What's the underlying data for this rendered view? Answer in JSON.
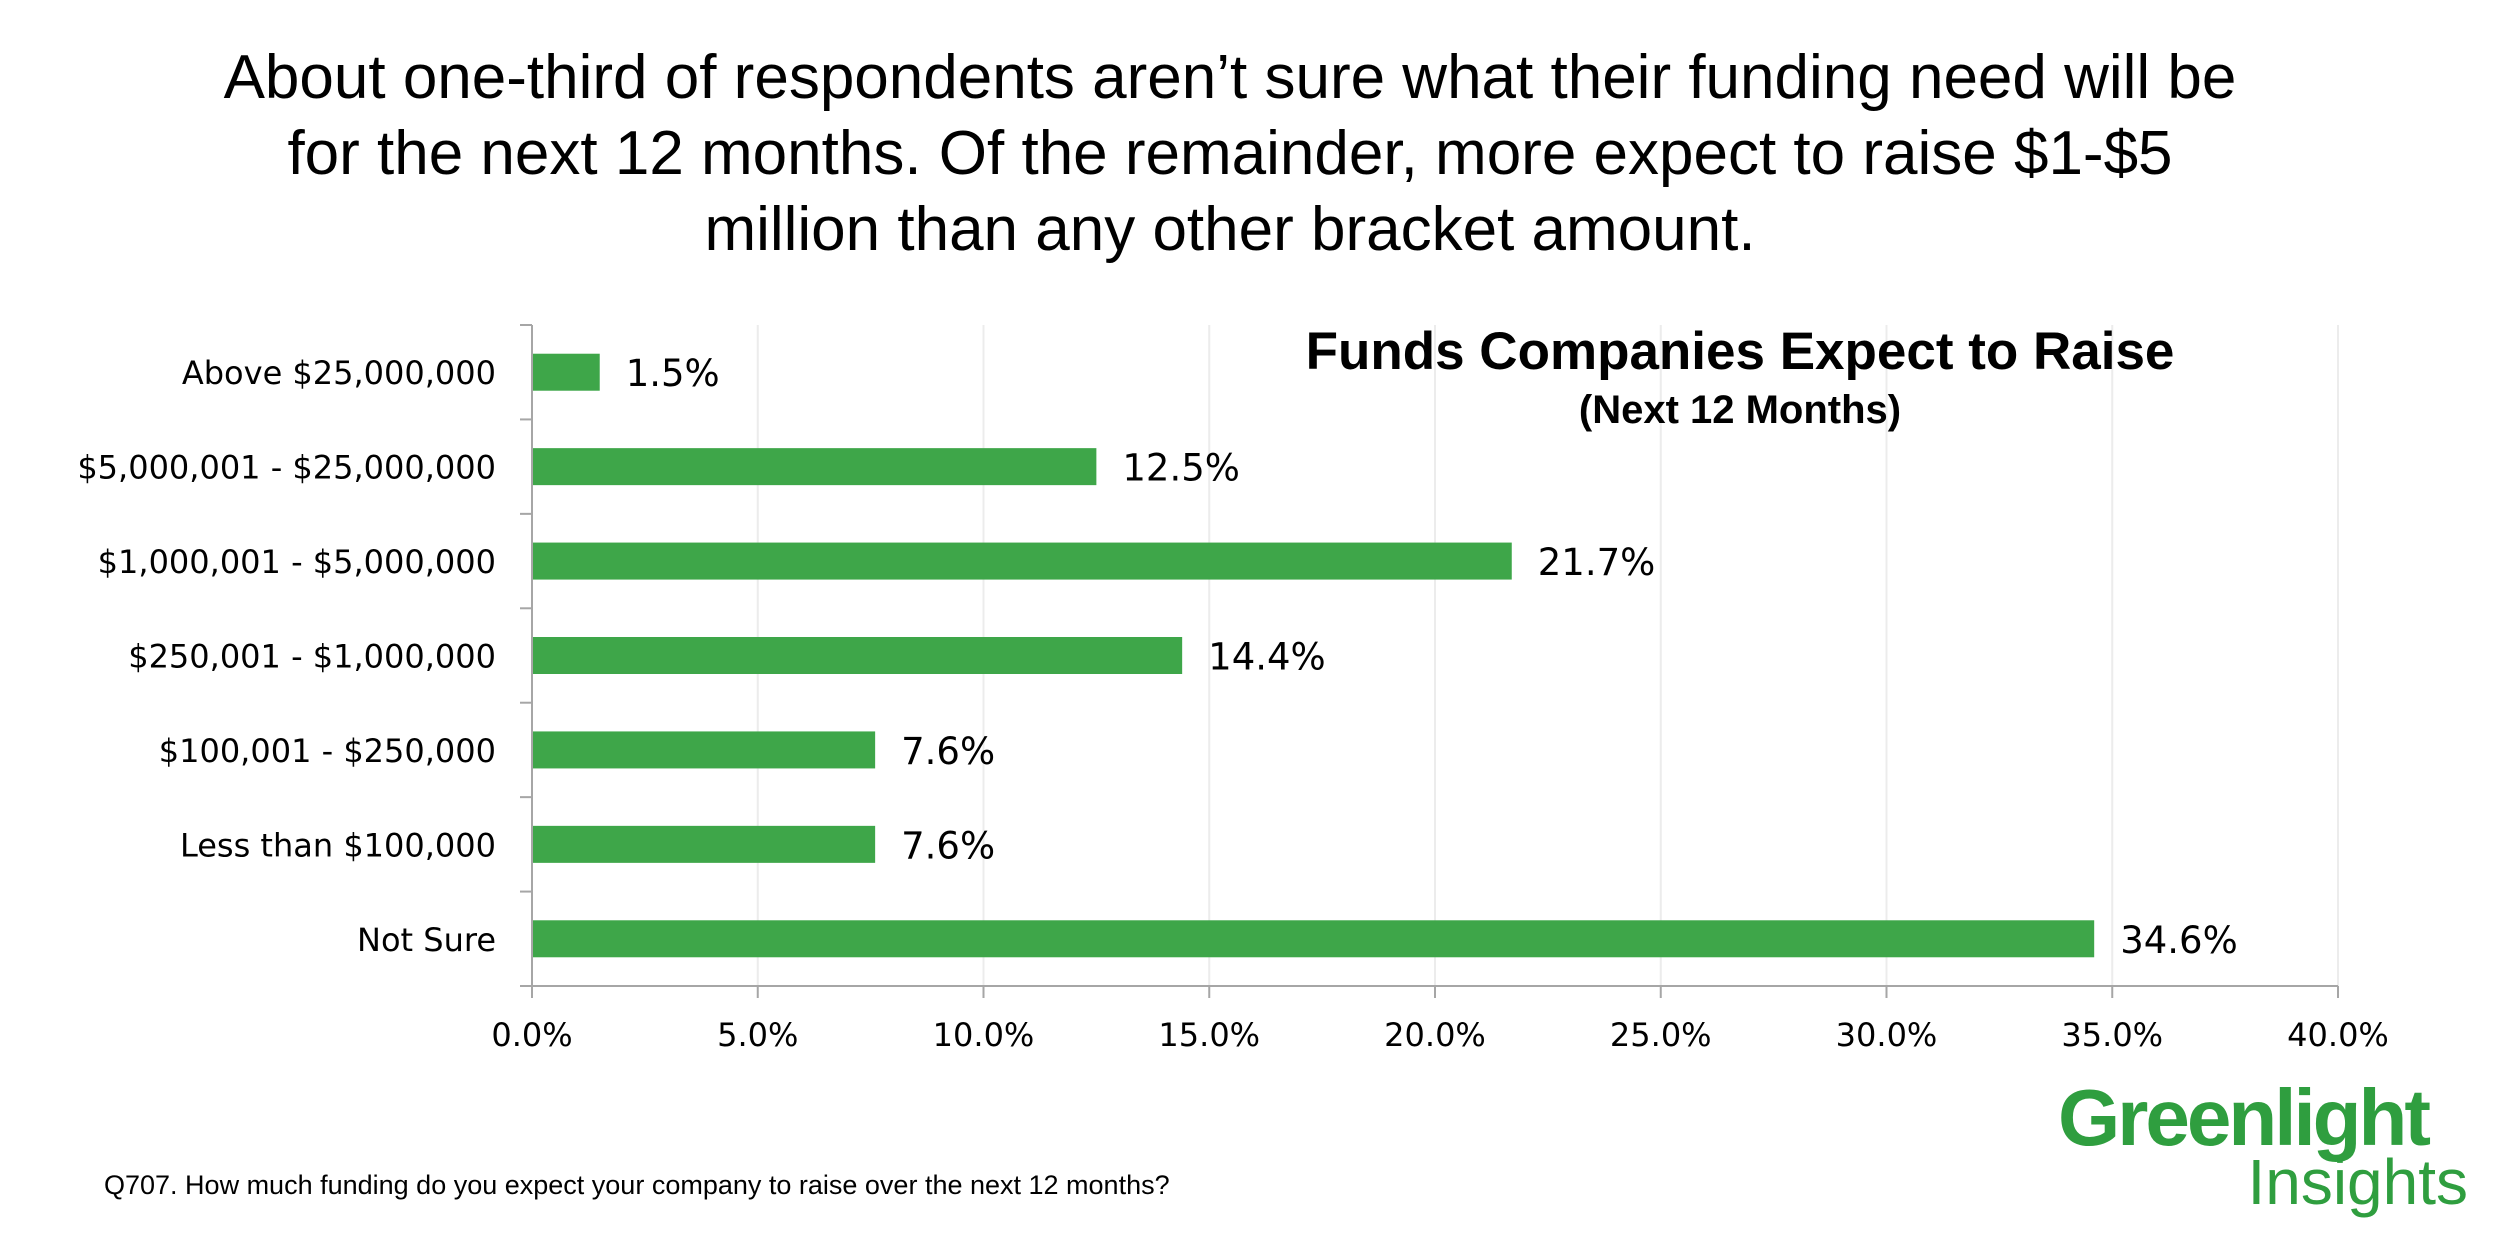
{
  "headline": {
    "line1": "About one-third of respondents aren’t sure what their funding need will be",
    "line2": "for the next 12 months. Of the remainder, more expect to raise $1-$5",
    "line3": "million than any other bracket amount."
  },
  "chart_data": {
    "type": "bar",
    "orientation": "horizontal",
    "title": "Funds Companies Expect to Raise",
    "subtitle": "(Next 12 Months)",
    "categories": [
      "Above $25,000,000",
      "$5,000,001 - $25,000,000",
      "$1,000,001 - $5,000,000",
      "$250,001 - $1,000,000",
      "$100,001 - $250,000",
      "Less than $100,000",
      "Not Sure"
    ],
    "values": [
      1.5,
      12.5,
      21.7,
      14.4,
      7.6,
      7.6,
      34.6
    ],
    "value_labels": [
      "1.5%",
      "12.5%",
      "21.7%",
      "14.4%",
      "7.6%",
      "7.6%",
      "34.6%"
    ],
    "xlim": [
      0,
      40
    ],
    "x_ticks": [
      0,
      5,
      10,
      15,
      20,
      25,
      30,
      35,
      40
    ],
    "x_tick_labels": [
      "0.0%",
      "5.0%",
      "10.0%",
      "15.0%",
      "20.0%",
      "25.0%",
      "30.0%",
      "35.0%",
      "40.0%"
    ],
    "grid": true,
    "bar_color": "#3ea649",
    "grid_color": "#ececec",
    "axis_color": "#a6a6a6"
  },
  "footnote": "Q707. How much funding do you expect your company to raise over the next 12 months?",
  "logo": {
    "top": "Greenlight",
    "bottom": "Insights",
    "color": "#2f9e3f"
  }
}
